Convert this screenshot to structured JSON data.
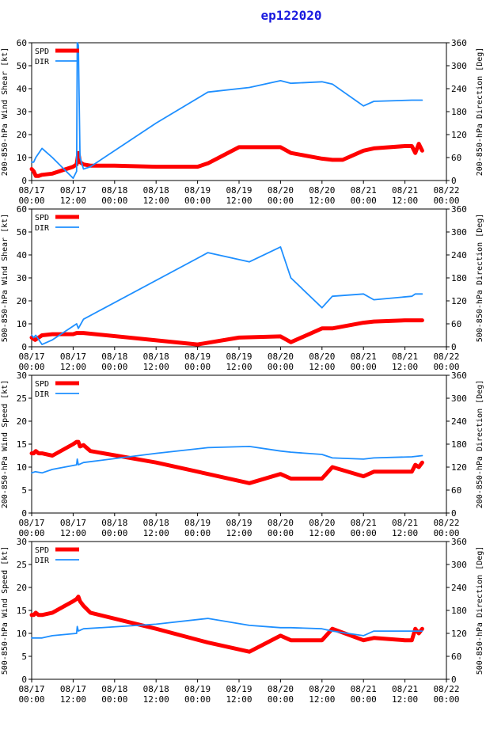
{
  "page_title": "ep122020",
  "colors": {
    "title": "#1a1adf",
    "spd": "#ff0000",
    "dir": "#1e8fff",
    "axis": "#000000"
  },
  "x_ticks": [
    {
      "date": "08/17",
      "time": "00:00"
    },
    {
      "date": "08/17",
      "time": "12:00"
    },
    {
      "date": "08/18",
      "time": "00:00"
    },
    {
      "date": "08/18",
      "time": "12:00"
    },
    {
      "date": "08/19",
      "time": "00:00"
    },
    {
      "date": "08/19",
      "time": "12:00"
    },
    {
      "date": "08/20",
      "time": "00:00"
    },
    {
      "date": "08/20",
      "time": "12:00"
    },
    {
      "date": "08/21",
      "time": "00:00"
    },
    {
      "date": "08/21",
      "time": "12:00"
    },
    {
      "date": "08/22",
      "time": "00:00"
    }
  ],
  "chart_data": [
    {
      "type": "line",
      "title": "",
      "ylabel": "200-850-hPa Wind Shear [kt]",
      "y2label": "200-850-hPa Direction [Deg]",
      "xlabel": "",
      "xlim": [
        0,
        120
      ],
      "ylim": [
        0,
        60
      ],
      "y2lim": [
        0,
        360
      ],
      "yticks": [
        "0",
        "10",
        "20",
        "30",
        "40",
        "50",
        "60"
      ],
      "y2ticks": [
        "0",
        "60",
        "120",
        "180",
        "240",
        "300",
        "360"
      ],
      "legend": [
        "SPD",
        "DIR"
      ],
      "legend_position": "top-left",
      "series": [
        {
          "name": "SPD",
          "axis": "left",
          "x": [
            0,
            0.6,
            1.2,
            2,
            3,
            6,
            12,
            13,
            13.5,
            14,
            15,
            17,
            24,
            36,
            48,
            51,
            60,
            72,
            75,
            84,
            87,
            90,
            96,
            99,
            108,
            110,
            111,
            112,
            113
          ],
          "y": [
            5,
            4,
            2,
            2,
            2.5,
            3,
            6,
            7,
            12,
            8,
            7,
            6.5,
            6.5,
            6,
            6,
            7.5,
            14.5,
            14.5,
            12,
            9.5,
            9,
            9,
            13,
            14,
            15,
            15,
            12,
            16,
            13
          ]
        },
        {
          "name": "DIR",
          "axis": "right",
          "x": [
            0,
            0.6,
            1.2,
            3,
            6,
            12,
            13,
            13.2,
            13.5,
            14,
            15,
            17,
            36,
            51,
            63,
            72,
            75,
            84,
            87,
            96,
            99,
            110,
            111,
            113
          ],
          "y": [
            48,
            48,
            60,
            84,
            60,
            6,
            24,
            360,
            354,
            60,
            30,
            36,
            150,
            231,
            243,
            261,
            254,
            258,
            252,
            195,
            207,
            210,
            210,
            210
          ]
        }
      ]
    },
    {
      "type": "line",
      "title": "",
      "ylabel": "500-850-hPa Wind Shear [kt]",
      "y2label": "500-850-hPa Direction [Deg]",
      "xlabel": "",
      "xlim": [
        0,
        120
      ],
      "ylim": [
        0,
        60
      ],
      "y2lim": [
        0,
        360
      ],
      "yticks": [
        "0",
        "10",
        "20",
        "30",
        "40",
        "50",
        "60"
      ],
      "y2ticks": [
        "0",
        "60",
        "120",
        "180",
        "240",
        "300",
        "360"
      ],
      "legend": [
        "SPD",
        "DIR"
      ],
      "legend_position": "top-left",
      "series": [
        {
          "name": "SPD",
          "axis": "left",
          "x": [
            0,
            1,
            2,
            3,
            6,
            12,
            13,
            15,
            48,
            60,
            72,
            75,
            84,
            87,
            96,
            99,
            108,
            113
          ],
          "y": [
            4,
            3,
            4,
            5,
            5.5,
            5.5,
            6,
            6,
            1,
            4,
            4.5,
            2,
            8,
            8,
            10.5,
            11,
            11.5,
            11.5
          ]
        },
        {
          "name": "DIR",
          "axis": "right",
          "x": [
            0,
            0.6,
            1.2,
            3,
            6,
            13,
            13.5,
            15,
            51,
            63,
            72,
            75,
            84,
            87,
            96,
            99,
            110,
            111,
            113
          ],
          "y": [
            30,
            24,
            30,
            6,
            18,
            60,
            48,
            72,
            246,
            222,
            261,
            180,
            102,
            132,
            138,
            123,
            132,
            138,
            138
          ]
        }
      ]
    },
    {
      "type": "line",
      "title": "",
      "ylabel": "200-850-hPa Wind Speed [kt]",
      "y2label": "200-850-hPa Direction [Deg]",
      "xlabel": "",
      "xlim": [
        0,
        120
      ],
      "ylim": [
        0,
        30
      ],
      "y2lim": [
        0,
        360
      ],
      "yticks": [
        "0",
        "5",
        "10",
        "15",
        "20",
        "25",
        "30"
      ],
      "y2ticks": [
        "0",
        "60",
        "120",
        "180",
        "240",
        "300",
        "360"
      ],
      "legend": [
        "SPD",
        "DIR"
      ],
      "legend_position": "top-left",
      "series": [
        {
          "name": "SPD",
          "axis": "left",
          "x": [
            0,
            0.6,
            1.2,
            2,
            3,
            6,
            12,
            13,
            13.5,
            14,
            15,
            17,
            36,
            51,
            63,
            72,
            75,
            84,
            87,
            96,
            99,
            108,
            110,
            111,
            112,
            113
          ],
          "y": [
            13,
            13,
            13.5,
            13,
            13,
            12.5,
            15,
            15.5,
            15.5,
            14.5,
            14.8,
            13.5,
            11,
            8.5,
            6.5,
            8.5,
            7.5,
            7.5,
            10,
            8,
            9,
            9,
            9,
            10.5,
            10,
            11
          ]
        },
        {
          "name": "DIR",
          "axis": "right",
          "x": [
            0,
            1,
            3,
            6,
            13,
            13.2,
            13.5,
            15,
            36,
            51,
            63,
            72,
            75,
            84,
            87,
            96,
            99,
            110,
            113
          ],
          "y": [
            105,
            108,
            105,
            114,
            126,
            141,
            126,
            132,
            156,
            171,
            174,
            162,
            159,
            153,
            144,
            141,
            144,
            147,
            150
          ]
        }
      ]
    },
    {
      "type": "line",
      "title": "",
      "ylabel": "500-850-hPa Wind Speed [kt]",
      "y2label": "500-850-hPa Direction [Deg]",
      "xlabel": "",
      "xlim": [
        0,
        120
      ],
      "ylim": [
        0,
        30
      ],
      "y2lim": [
        0,
        360
      ],
      "yticks": [
        "0",
        "5",
        "10",
        "15",
        "20",
        "25",
        "30"
      ],
      "y2ticks": [
        "0",
        "60",
        "120",
        "180",
        "240",
        "300",
        "360"
      ],
      "legend": [
        "SPD",
        "DIR"
      ],
      "legend_position": "top-left",
      "series": [
        {
          "name": "SPD",
          "axis": "left",
          "x": [
            0,
            0.6,
            1.2,
            2,
            3,
            6,
            12,
            13,
            13.5,
            14,
            15,
            17,
            36,
            51,
            63,
            72,
            75,
            84,
            87,
            96,
            99,
            108,
            110,
            111,
            112,
            113
          ],
          "y": [
            14,
            14,
            14.5,
            14,
            14,
            14.5,
            17,
            17.5,
            18,
            17,
            16,
            14.5,
            11,
            8,
            6,
            9.5,
            8.5,
            8.5,
            11,
            8.5,
            9,
            8.5,
            8.5,
            11,
            10,
            11
          ]
        },
        {
          "name": "DIR",
          "axis": "right",
          "x": [
            0,
            1,
            3,
            6,
            13,
            13.2,
            13.5,
            15,
            36,
            51,
            63,
            72,
            75,
            84,
            87,
            96,
            99,
            110,
            113
          ],
          "y": [
            108,
            108,
            108,
            114,
            120,
            138,
            126,
            132,
            144,
            159,
            141,
            135,
            135,
            132,
            126,
            114,
            126,
            126,
            126
          ]
        }
      ]
    }
  ]
}
